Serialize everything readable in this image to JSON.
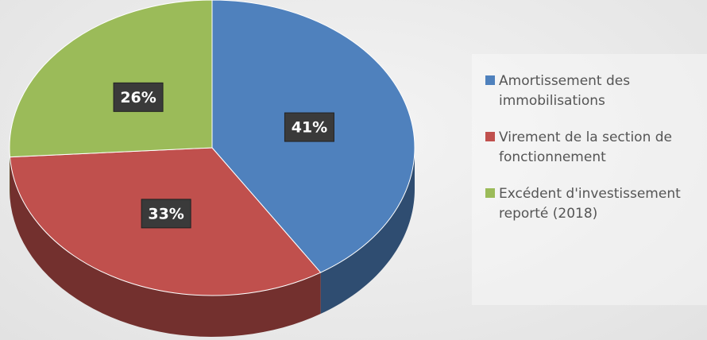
{
  "chart_data": {
    "type": "pie",
    "categories": [
      "Amortissement des immobilisations",
      "Virement de la section de fonctionnement",
      "Excédent d'investissement reporté (2018)"
    ],
    "values": [
      41,
      33,
      26
    ],
    "value_labels": [
      "41%",
      "33%",
      "26%"
    ],
    "colors": [
      "#4f81bd",
      "#c0504d",
      "#9bbb59"
    ],
    "legend": "right"
  }
}
